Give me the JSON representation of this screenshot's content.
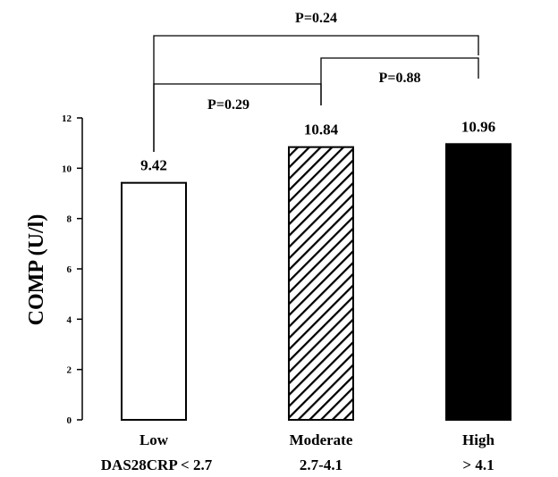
{
  "chart_data": {
    "type": "bar",
    "ylabel": "COMP (U/l)",
    "ylim": [
      0,
      12
    ],
    "yticks": [
      0,
      2,
      4,
      6,
      8,
      10,
      12
    ],
    "categories": [
      "Low",
      "Moderate",
      "High"
    ],
    "category_sublabels": [
      "DAS28CRP < 2.7",
      "2.7-4.1",
      "> 4.1"
    ],
    "values": [
      9.42,
      10.84,
      10.96
    ],
    "data_labels": [
      "9.42",
      "10.84",
      "10.96"
    ],
    "bar_fills": [
      "white",
      "hatched",
      "black"
    ],
    "comparisons": [
      {
        "from": 0,
        "to": 2,
        "label": "P=0.24"
      },
      {
        "from": 0,
        "to": 1,
        "label": "P=0.29"
      },
      {
        "from": 1,
        "to": 2,
        "label": "P=0.88"
      }
    ]
  }
}
